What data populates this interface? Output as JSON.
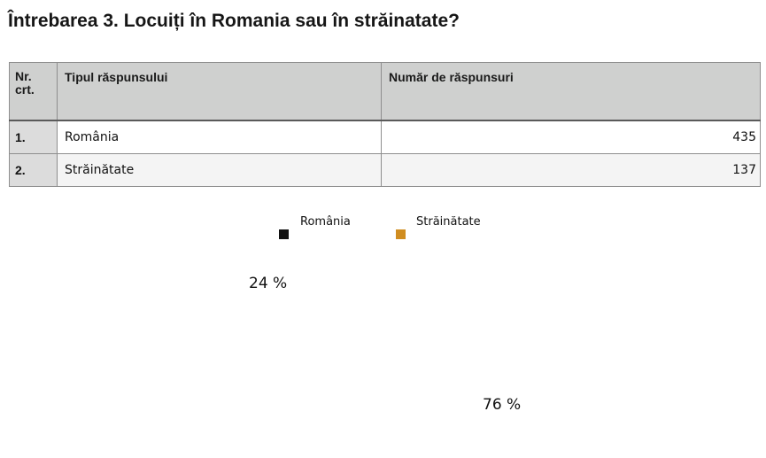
{
  "title": "Întrebarea 3. Locuiți în Romania sau în străinatate?",
  "table": {
    "headers": [
      "Nr. crt.",
      "Tipul răspunsului",
      "Număr de răspunsuri"
    ],
    "rows": [
      {
        "nr": "1.",
        "type": "România",
        "count": "435"
      },
      {
        "nr": "2.",
        "type": "Străinătate",
        "count": "137"
      }
    ]
  },
  "chart_data": {
    "type": "pie",
    "categories": [
      "România",
      "Străinătate"
    ],
    "values": [
      435,
      137
    ],
    "labels": [
      "76 %",
      "24 %"
    ],
    "colors": [
      "#121212",
      "#d08d20"
    ],
    "legend": "top-center"
  }
}
